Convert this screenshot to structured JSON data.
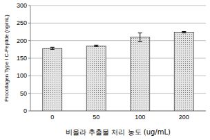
{
  "chart_data": {
    "type": "bar",
    "x_label": "비올라 추출물 처리 농도 (ug/mL)",
    "y_label": "Procollagen Type I C-Peptide (ng/mL)",
    "categories": [
      "0",
      "50",
      "100",
      "200"
    ],
    "values": [
      178,
      185,
      210,
      224
    ],
    "errors": [
      3,
      2,
      12,
      2
    ],
    "color": "#e4e4e4",
    "ylim": [
      0,
      300
    ],
    "yticks": [
      0,
      50,
      100,
      150,
      200,
      250,
      300
    ],
    "grid": true
  }
}
